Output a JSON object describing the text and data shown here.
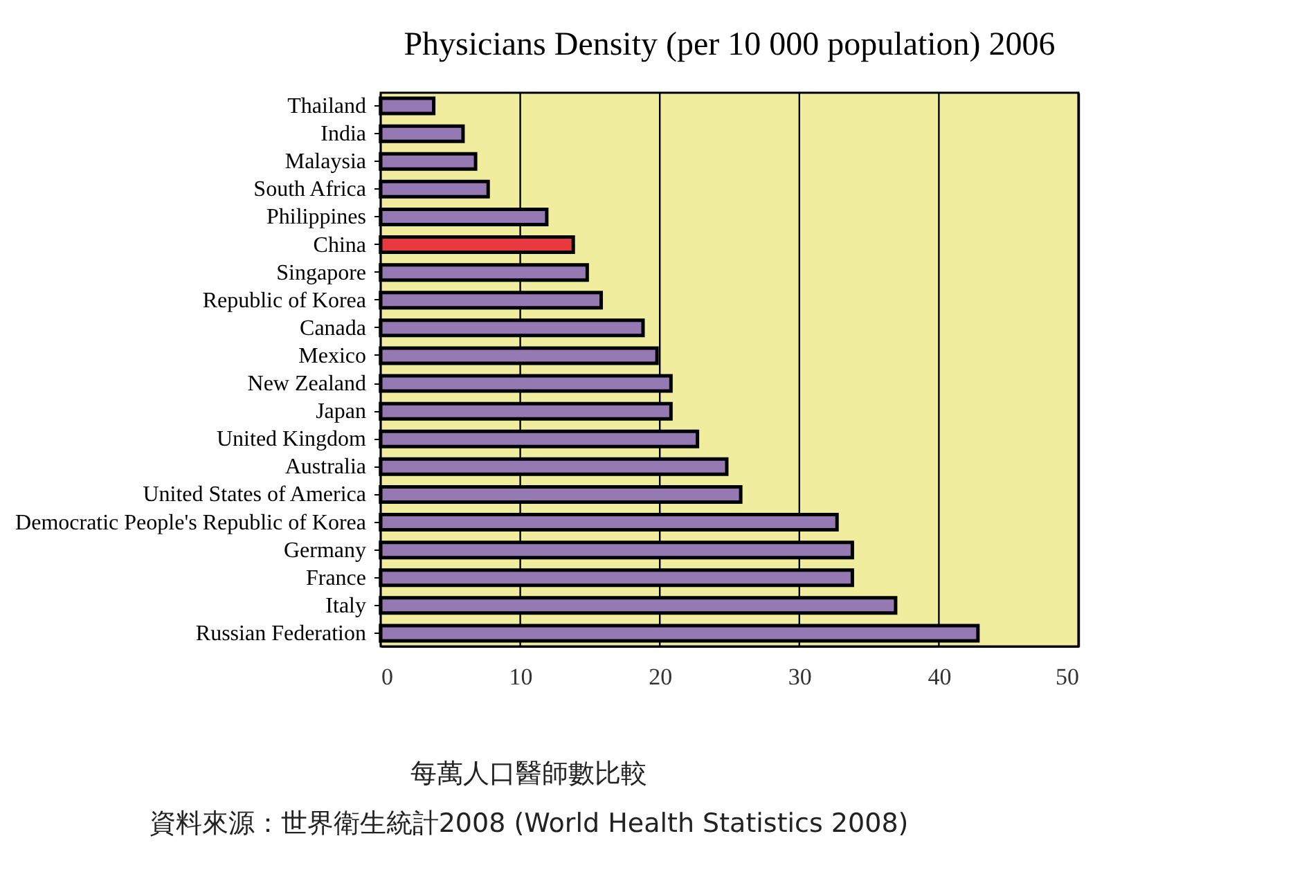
{
  "chart_data": {
    "type": "bar",
    "orientation": "horizontal",
    "title": "Physicians Density (per 10 000 population) 2006",
    "categories": [
      "Thailand",
      "India",
      "Malaysia",
      "South Africa",
      "Philippines",
      "China",
      "Singapore",
      "Republic of Korea",
      "Canada",
      "Mexico",
      "New Zealand",
      "Japan",
      "United Kingdom",
      "Australia",
      "United States of America",
      "Democratic People's Republic of Korea",
      "Germany",
      "France",
      "Italy",
      "Russian Federation"
    ],
    "values": [
      3.8,
      5.9,
      6.8,
      7.7,
      11.9,
      13.8,
      14.8,
      15.8,
      18.8,
      19.8,
      20.8,
      20.8,
      22.7,
      24.8,
      25.8,
      32.7,
      33.8,
      33.8,
      36.9,
      42.8
    ],
    "colors": [
      "#9579b3",
      "#9579b3",
      "#9579b3",
      "#9579b3",
      "#9579b3",
      "#e8393f",
      "#9579b3",
      "#9579b3",
      "#9579b3",
      "#9579b3",
      "#9579b3",
      "#9579b3",
      "#9579b3",
      "#9579b3",
      "#9579b3",
      "#9579b3",
      "#9579b3",
      "#9579b3",
      "#9579b3",
      "#9579b3"
    ],
    "xlim": [
      0,
      50
    ],
    "xticks": [
      0,
      10,
      20,
      30,
      40,
      50
    ],
    "grid": "x",
    "annotations": [
      "每萬人口醫師數比較",
      "資料來源：世界衛生統計2008 (World Health Statistics 2008)"
    ]
  }
}
